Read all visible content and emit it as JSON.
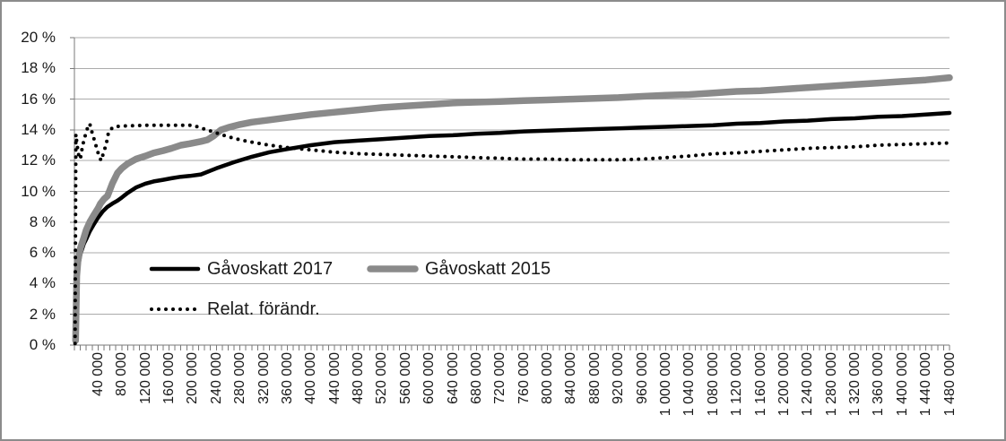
{
  "chart_data": {
    "type": "line",
    "title": "",
    "xlabel": "",
    "ylabel": "",
    "grid": true,
    "legend_position": "inside-center-left",
    "y_axis": {
      "min": 0,
      "max": 20,
      "step": 2,
      "suffix": " %",
      "tick_labels": [
        "20 %",
        "18 %",
        "16 %",
        "14 %",
        "12 %",
        "10 %",
        "8 %",
        "6 %",
        "4 %",
        "2 %",
        "0 %"
      ]
    },
    "x_axis": {
      "min": 0,
      "max": 1480000,
      "label_step": 40000,
      "minor_tick_step": 10000,
      "tick_labels": [
        "40 000",
        "80 000",
        "120 000",
        "160 000",
        "200 000",
        "240 000",
        "280 000",
        "320 000",
        "360 000",
        "400 000",
        "440 000",
        "480 000",
        "520 000",
        "560 000",
        "600 000",
        "640 000",
        "680 000",
        "720 000",
        "760 000",
        "800 000",
        "840 000",
        "880 000",
        "920 000",
        "960 000",
        "1 000 000",
        "1 040 000",
        "1 080 000",
        "1 120 000",
        "1 160 000",
        "1 200 000",
        "1 240 000",
        "1 280 000",
        "1 320 000",
        "1 360 000",
        "1 400 000",
        "1 440 000",
        "1 480 000"
      ]
    },
    "series": [
      {
        "name": "Gåvoskatt 2017",
        "color": "#000000",
        "style": "solid",
        "width": 4.5,
        "points": [
          [
            2000,
            0.3
          ],
          [
            4000,
            4.0
          ],
          [
            6000,
            5.0
          ],
          [
            10000,
            5.9
          ],
          [
            16000,
            6.6
          ],
          [
            20000,
            6.9
          ],
          [
            26000,
            7.4
          ],
          [
            32000,
            7.8
          ],
          [
            40000,
            8.3
          ],
          [
            48000,
            8.7
          ],
          [
            56000,
            9.0
          ],
          [
            64000,
            9.2
          ],
          [
            73000,
            9.4
          ],
          [
            80000,
            9.6
          ],
          [
            90000,
            9.9
          ],
          [
            104000,
            10.25
          ],
          [
            120000,
            10.5
          ],
          [
            134000,
            10.65
          ],
          [
            150000,
            10.75
          ],
          [
            164000,
            10.85
          ],
          [
            180000,
            10.95
          ],
          [
            195000,
            11.0
          ],
          [
            214000,
            11.1
          ],
          [
            240000,
            11.5
          ],
          [
            270000,
            11.9
          ],
          [
            300000,
            12.25
          ],
          [
            330000,
            12.55
          ],
          [
            360000,
            12.75
          ],
          [
            400000,
            13.0
          ],
          [
            440000,
            13.2
          ],
          [
            480000,
            13.3
          ],
          [
            520000,
            13.4
          ],
          [
            560000,
            13.5
          ],
          [
            600000,
            13.6
          ],
          [
            640000,
            13.65
          ],
          [
            680000,
            13.75
          ],
          [
            720000,
            13.8
          ],
          [
            760000,
            13.9
          ],
          [
            800000,
            13.95
          ],
          [
            840000,
            14.0
          ],
          [
            880000,
            14.05
          ],
          [
            920000,
            14.1
          ],
          [
            960000,
            14.15
          ],
          [
            1000000,
            14.2
          ],
          [
            1040000,
            14.25
          ],
          [
            1080000,
            14.3
          ],
          [
            1120000,
            14.4
          ],
          [
            1160000,
            14.45
          ],
          [
            1200000,
            14.55
          ],
          [
            1240000,
            14.6
          ],
          [
            1280000,
            14.7
          ],
          [
            1320000,
            14.75
          ],
          [
            1360000,
            14.85
          ],
          [
            1400000,
            14.9
          ],
          [
            1440000,
            15.0
          ],
          [
            1480000,
            15.1
          ]
        ]
      },
      {
        "name": "Gåvoskatt 2015",
        "color": "#8a8a8a",
        "style": "solid",
        "width": 7.5,
        "points": [
          [
            2000,
            0.3
          ],
          [
            4000,
            4.5
          ],
          [
            6000,
            5.5
          ],
          [
            10000,
            6.3
          ],
          [
            16000,
            7.0
          ],
          [
            20000,
            7.5
          ],
          [
            26000,
            8.0
          ],
          [
            32000,
            8.4
          ],
          [
            40000,
            8.9
          ],
          [
            44000,
            9.2
          ],
          [
            50000,
            9.5
          ],
          [
            56000,
            9.7
          ],
          [
            60000,
            10.1
          ],
          [
            64000,
            10.5
          ],
          [
            73000,
            11.2
          ],
          [
            80000,
            11.5
          ],
          [
            90000,
            11.8
          ],
          [
            104000,
            12.1
          ],
          [
            120000,
            12.3
          ],
          [
            134000,
            12.5
          ],
          [
            150000,
            12.65
          ],
          [
            164000,
            12.8
          ],
          [
            180000,
            13.0
          ],
          [
            195000,
            13.1
          ],
          [
            214000,
            13.25
          ],
          [
            225000,
            13.35
          ],
          [
            235000,
            13.6
          ],
          [
            248000,
            14.0
          ],
          [
            260000,
            14.15
          ],
          [
            280000,
            14.35
          ],
          [
            300000,
            14.5
          ],
          [
            330000,
            14.65
          ],
          [
            360000,
            14.8
          ],
          [
            400000,
            15.0
          ],
          [
            440000,
            15.15
          ],
          [
            480000,
            15.3
          ],
          [
            520000,
            15.45
          ],
          [
            560000,
            15.55
          ],
          [
            600000,
            15.65
          ],
          [
            640000,
            15.75
          ],
          [
            680000,
            15.8
          ],
          [
            720000,
            15.85
          ],
          [
            760000,
            15.9
          ],
          [
            800000,
            15.95
          ],
          [
            840000,
            16.0
          ],
          [
            880000,
            16.05
          ],
          [
            920000,
            16.1
          ],
          [
            960000,
            16.18
          ],
          [
            1000000,
            16.25
          ],
          [
            1040000,
            16.3
          ],
          [
            1080000,
            16.4
          ],
          [
            1120000,
            16.5
          ],
          [
            1160000,
            16.55
          ],
          [
            1200000,
            16.65
          ],
          [
            1240000,
            16.75
          ],
          [
            1280000,
            16.85
          ],
          [
            1320000,
            16.95
          ],
          [
            1360000,
            17.05
          ],
          [
            1400000,
            17.15
          ],
          [
            1440000,
            17.25
          ],
          [
            1480000,
            17.4
          ]
        ]
      },
      {
        "name": "Relat. förändr.",
        "color": "#000000",
        "style": "dotted",
        "width": 4,
        "points": [
          [
            1000,
            0.1
          ],
          [
            2500,
            13.7
          ],
          [
            5000,
            12.9
          ],
          [
            7000,
            12.4
          ],
          [
            10000,
            12.1
          ],
          [
            14000,
            13.0
          ],
          [
            18000,
            13.6
          ],
          [
            22000,
            14.1
          ],
          [
            26000,
            14.4
          ],
          [
            30000,
            13.8
          ],
          [
            34000,
            13.3
          ],
          [
            40000,
            12.5
          ],
          [
            45000,
            12.0
          ],
          [
            50000,
            12.6
          ],
          [
            54000,
            13.1
          ],
          [
            58000,
            13.9
          ],
          [
            66000,
            14.2
          ],
          [
            80000,
            14.25
          ],
          [
            120000,
            14.3
          ],
          [
            160000,
            14.3
          ],
          [
            200000,
            14.3
          ],
          [
            220000,
            14.05
          ],
          [
            240000,
            13.8
          ],
          [
            260000,
            13.55
          ],
          [
            280000,
            13.35
          ],
          [
            300000,
            13.2
          ],
          [
            330000,
            13.0
          ],
          [
            360000,
            12.85
          ],
          [
            400000,
            12.7
          ],
          [
            440000,
            12.55
          ],
          [
            480000,
            12.45
          ],
          [
            520000,
            12.4
          ],
          [
            560000,
            12.35
          ],
          [
            600000,
            12.3
          ],
          [
            640000,
            12.25
          ],
          [
            680000,
            12.2
          ],
          [
            720000,
            12.15
          ],
          [
            760000,
            12.1
          ],
          [
            800000,
            12.1
          ],
          [
            840000,
            12.05
          ],
          [
            880000,
            12.05
          ],
          [
            920000,
            12.05
          ],
          [
            960000,
            12.1
          ],
          [
            1000000,
            12.2
          ],
          [
            1040000,
            12.3
          ],
          [
            1080000,
            12.45
          ],
          [
            1120000,
            12.5
          ],
          [
            1160000,
            12.6
          ],
          [
            1200000,
            12.7
          ],
          [
            1240000,
            12.8
          ],
          [
            1280000,
            12.85
          ],
          [
            1320000,
            12.9
          ],
          [
            1360000,
            13.0
          ],
          [
            1400000,
            13.05
          ],
          [
            1440000,
            13.1
          ],
          [
            1480000,
            13.15
          ]
        ]
      }
    ],
    "colors": {
      "series_black": "#000000",
      "series_gray": "#8a8a8a",
      "gridline": "#ababab",
      "axis": "#7a7a7a",
      "text": "#1a1a1a"
    }
  }
}
